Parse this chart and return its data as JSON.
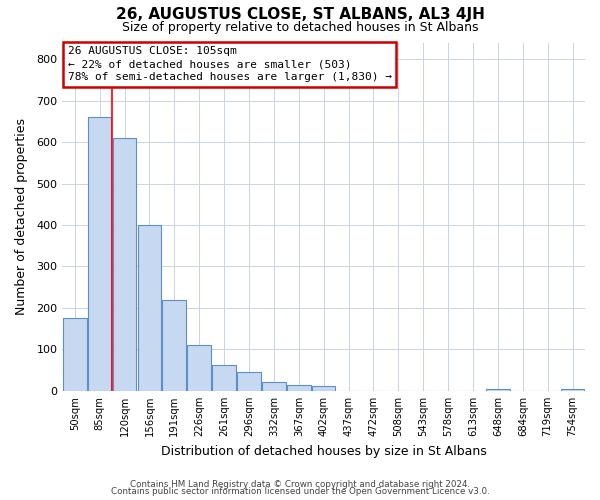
{
  "title": "26, AUGUSTUS CLOSE, ST ALBANS, AL3 4JH",
  "subtitle": "Size of property relative to detached houses in St Albans",
  "xlabel": "Distribution of detached houses by size in St Albans",
  "ylabel": "Number of detached properties",
  "bar_labels": [
    "50sqm",
    "85sqm",
    "120sqm",
    "156sqm",
    "191sqm",
    "226sqm",
    "261sqm",
    "296sqm",
    "332sqm",
    "367sqm",
    "402sqm",
    "437sqm",
    "472sqm",
    "508sqm",
    "543sqm",
    "578sqm",
    "613sqm",
    "648sqm",
    "684sqm",
    "719sqm",
    "754sqm"
  ],
  "bar_heights": [
    175,
    660,
    610,
    400,
    220,
    110,
    62,
    45,
    22,
    15,
    12,
    0,
    0,
    0,
    0,
    0,
    0,
    5,
    0,
    0,
    5
  ],
  "ylim": [
    0,
    840
  ],
  "yticks": [
    0,
    100,
    200,
    300,
    400,
    500,
    600,
    700,
    800
  ],
  "bar_color": "#c6d9f0",
  "bar_edge_color": "#5b8fc9",
  "property_line_x": 1.5,
  "annotation_title": "26 AUGUSTUS CLOSE: 105sqm",
  "annotation_line1": "← 22% of detached houses are smaller (503)",
  "annotation_line2": "78% of semi-detached houses are larger (1,830) →",
  "annotation_box_color": "#cc0000",
  "footer_line1": "Contains HM Land Registry data © Crown copyright and database right 2024.",
  "footer_line2": "Contains public sector information licensed under the Open Government Licence v3.0.",
  "background_color": "#ffffff",
  "grid_color": "#c8d4e3"
}
